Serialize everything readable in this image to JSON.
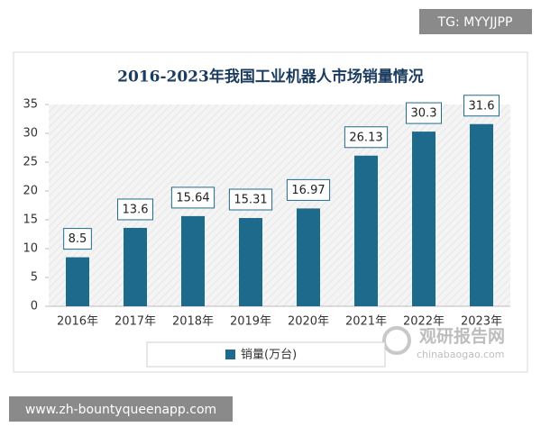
{
  "chart_data": {
    "type": "bar",
    "title": "2016-2023年我国工业机器人市场销量情况",
    "categories": [
      "2016年",
      "2017年",
      "2018年",
      "2019年",
      "2020年",
      "2021年",
      "2022年",
      "2023年"
    ],
    "series": [
      {
        "name": "销量(万台)",
        "color": "#1e6a8c",
        "values": [
          8.5,
          13.6,
          15.64,
          15.31,
          16.97,
          26.13,
          30.3,
          31.6
        ]
      }
    ],
    "ylim": [
      0,
      35
    ],
    "yticks": [
      0,
      5,
      10,
      15,
      20,
      25,
      30,
      35
    ],
    "legend": "bottom"
  },
  "overlay": {
    "tag": "TG: MYYJJPP",
    "url": "www.zh-bountyqueenapp.com",
    "watermark": "观研报告网",
    "watermark_sub": "chinabaogao.com"
  }
}
